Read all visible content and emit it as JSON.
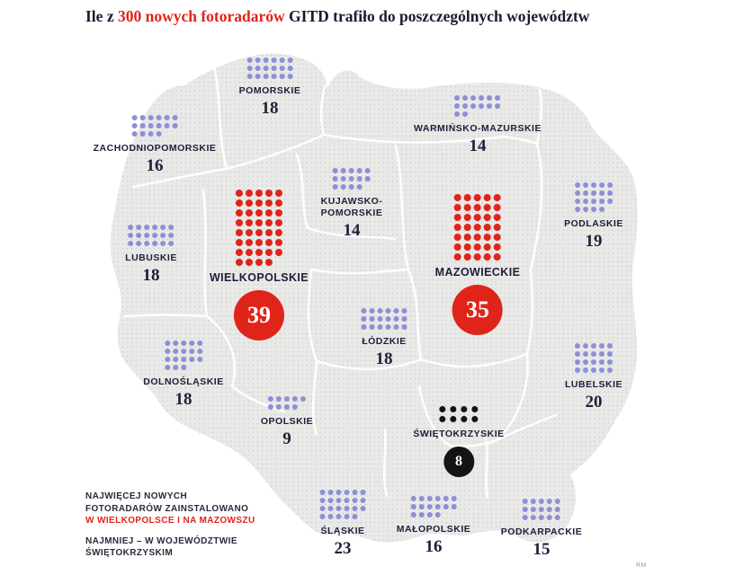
{
  "title": {
    "prefix": "Ile z ",
    "highlight": "300 nowych fotoradarów",
    "suffix": " GITD trafiło do poszczególnych województw"
  },
  "colors": {
    "purple": "#8d8fd6",
    "red": "#e0241a",
    "black": "#141414",
    "map_fill": "#e9e9e8",
    "map_texture_dot": "#d2d2d1",
    "text_dark": "#20203a"
  },
  "regions": [
    {
      "id": "pomorskie",
      "label_lines": [
        "POMORSKIE"
      ],
      "count": 18,
      "cols": 6,
      "color": "purple",
      "display": "number"
    },
    {
      "id": "zachodniopomorskie",
      "label_lines": [
        "ZACHODNIOPOMORSKIE"
      ],
      "count": 16,
      "cols": 6,
      "color": "purple",
      "display": "number"
    },
    {
      "id": "warminsko-mazurskie",
      "label_lines": [
        "WARMIŃSKO-MAZURSKIE"
      ],
      "count": 14,
      "cols": 6,
      "color": "purple",
      "display": "number"
    },
    {
      "id": "kujawsko-pomorskie",
      "label_lines": [
        "KUJAWSKO-",
        "POMORSKIE"
      ],
      "count": 14,
      "cols": 5,
      "color": "purple",
      "display": "number"
    },
    {
      "id": "podlaskie",
      "label_lines": [
        "PODLASKIE"
      ],
      "count": 19,
      "cols": 5,
      "color": "purple",
      "display": "number"
    },
    {
      "id": "wielkopolskie",
      "label_lines": [
        "WIELKOPOLSKIE"
      ],
      "count": 39,
      "cols": 5,
      "color": "red",
      "display": "badge",
      "badge_size": 56
    },
    {
      "id": "mazowieckie",
      "label_lines": [
        "MAZOWIECKIE"
      ],
      "count": 35,
      "cols": 5,
      "color": "red",
      "display": "badge",
      "badge_size": 56
    },
    {
      "id": "lubuskie",
      "label_lines": [
        "LUBUSKIE"
      ],
      "count": 18,
      "cols": 6,
      "color": "purple",
      "display": "number"
    },
    {
      "id": "lodzkie",
      "label_lines": [
        "ŁÓDZKIE"
      ],
      "count": 18,
      "cols": 6,
      "color": "purple",
      "display": "number"
    },
    {
      "id": "dolnoslaskie",
      "label_lines": [
        "DOLNOŚLĄSKIE"
      ],
      "count": 18,
      "cols": 5,
      "color": "purple",
      "display": "number"
    },
    {
      "id": "lubelskie",
      "label_lines": [
        "LUBELSKIE"
      ],
      "count": 20,
      "cols": 5,
      "color": "purple",
      "display": "number"
    },
    {
      "id": "opolskie",
      "label_lines": [
        "OPOLSKIE"
      ],
      "count": 9,
      "cols": 5,
      "color": "purple",
      "display": "number"
    },
    {
      "id": "swietokrzyskie",
      "label_lines": [
        "ŚWIĘTOKRZYSKIE"
      ],
      "count": 8,
      "cols": 4,
      "color": "black",
      "display": "badge",
      "badge_size": 34
    },
    {
      "id": "slaskie",
      "label_lines": [
        "ŚLĄSKIE"
      ],
      "count": 23,
      "cols": 6,
      "color": "purple",
      "display": "number"
    },
    {
      "id": "malopolskie",
      "label_lines": [
        "MAŁOPOLSKIE"
      ],
      "count": 16,
      "cols": 6,
      "color": "purple",
      "display": "number"
    },
    {
      "id": "podkarpackie",
      "label_lines": [
        "PODKARPACKIE"
      ],
      "count": 15,
      "cols": 5,
      "color": "purple",
      "display": "number"
    }
  ],
  "legend": {
    "most_lines": [
      "NAJWIĘCEJ NOWYCH",
      "FOTORADARÓW ZAINSTALOWANO"
    ],
    "most_highlight": "W WIELKOPOLSCE I NA MAZOWSZU",
    "least_lines": [
      "NAJMNIEJ – W WOJEWÓDZTWIE",
      "ŚWIĘTOKRZYSKIM"
    ]
  },
  "credit": "RM",
  "chart_data": {
    "type": "table",
    "title": "Ile z 300 nowych fotoradarów GITD trafiło do poszczególnych województw",
    "categories": [
      "Pomorskie",
      "Zachodniopomorskie",
      "Warmińsko-Mazurskie",
      "Kujawsko-Pomorskie",
      "Podlaskie",
      "Wielkopolskie",
      "Mazowieckie",
      "Lubuskie",
      "Łódzkie",
      "Dolnośląskie",
      "Lubelskie",
      "Opolskie",
      "Świętokrzyskie",
      "Śląskie",
      "Małopolskie",
      "Podkarpackie"
    ],
    "values": [
      18,
      16,
      14,
      14,
      19,
      39,
      35,
      18,
      18,
      18,
      20,
      9,
      8,
      23,
      16,
      15
    ],
    "total": 300,
    "max_note": "Najwięcej nowych fotoradarów zainstalowano w Wielkopolsce i na Mazowszu",
    "min_note": "Najmniej – w województwie świętokrzyskim"
  }
}
